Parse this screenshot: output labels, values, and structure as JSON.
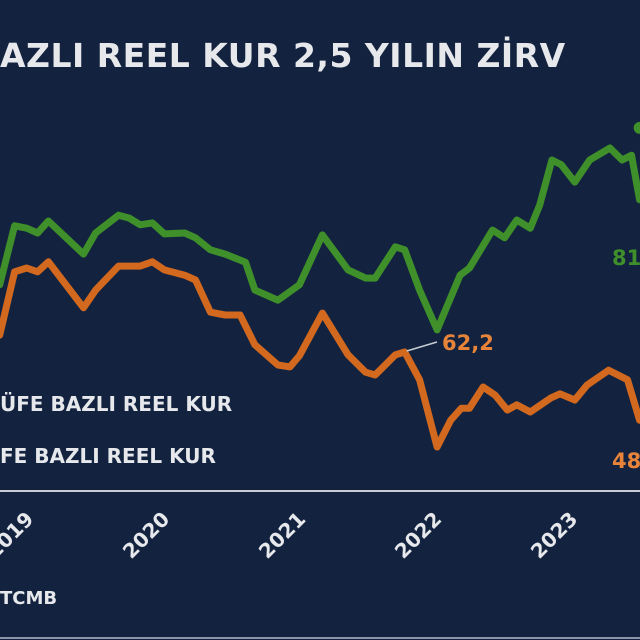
{
  "title": "AZLI REEL KUR 2,5 YILIN ZİRV",
  "legend": [
    {
      "label": "ÜFE BAZLI REEL KUR",
      "color": "#3f8f2a"
    },
    {
      "label": "FE BAZLI REEL KUR",
      "color": "#d2691e"
    }
  ],
  "source": "TCMB",
  "colors": {
    "background": "#13233f",
    "green": "#3f8f2a",
    "orange": "#d2691e",
    "orange_label": "#e8843a",
    "green_label": "#3f8f2a",
    "text": "#e6e8ec",
    "axis": "#c8ccd4"
  },
  "chart_data": {
    "type": "line",
    "title": "AZLI REEL KUR 2,5 YILIN ZİRV",
    "xlabel": "",
    "ylabel": "",
    "x_ticks": [
      "2019",
      "2020",
      "2021",
      "2022",
      "2023"
    ],
    "grid": false,
    "legend_placement": "bottom-left",
    "annotations": [
      {
        "text": "62,2",
        "series": 1,
        "x": 2021.85,
        "y": 62.2,
        "color": "#e8843a"
      },
      {
        "text": "81",
        "series": 0,
        "color": "#3f8f2a"
      },
      {
        "text": "48",
        "series": 1,
        "color": "#e8843a"
      }
    ],
    "series": [
      {
        "name": "ÜFE BAZLI REEL KUR",
        "color": "#3f8f2a",
        "points": [
          [
            2018.85,
            76.2
          ],
          [
            2018.96,
            88.5
          ],
          [
            2019.05,
            88.0
          ],
          [
            2019.13,
            87.0
          ],
          [
            2019.21,
            89.5
          ],
          [
            2019.47,
            82.6
          ],
          [
            2019.56,
            87.0
          ],
          [
            2019.73,
            90.7
          ],
          [
            2019.81,
            90.1
          ],
          [
            2019.89,
            88.7
          ],
          [
            2019.98,
            89.1
          ],
          [
            2020.07,
            86.8
          ],
          [
            2020.22,
            87.0
          ],
          [
            2020.3,
            86.0
          ],
          [
            2020.41,
            83.5
          ],
          [
            2020.52,
            82.6
          ],
          [
            2020.67,
            80.9
          ],
          [
            2020.74,
            75.1
          ],
          [
            2020.91,
            73.0
          ],
          [
            2021.07,
            76.2
          ],
          [
            2021.24,
            86.6
          ],
          [
            2021.43,
            79.3
          ],
          [
            2021.56,
            77.6
          ],
          [
            2021.63,
            77.6
          ],
          [
            2021.78,
            84.1
          ],
          [
            2021.85,
            83.5
          ],
          [
            2021.96,
            75.1
          ],
          [
            2022.09,
            66.8
          ],
          [
            2022.26,
            78.2
          ],
          [
            2022.33,
            79.7
          ],
          [
            2022.5,
            87.6
          ],
          [
            2022.59,
            86.0
          ],
          [
            2022.68,
            89.7
          ],
          [
            2022.78,
            88.0
          ],
          [
            2022.85,
            92.8
          ],
          [
            2022.94,
            102.2
          ],
          [
            2023.01,
            101.2
          ],
          [
            2023.11,
            97.6
          ],
          [
            2023.22,
            102.2
          ],
          [
            2023.37,
            104.7
          ],
          [
            2023.46,
            102.2
          ],
          [
            2023.53,
            103.2
          ],
          [
            2023.59,
            93.9
          ]
        ],
        "marker": [
          2023.59,
          108.9
        ]
      },
      {
        "name": "FE BAZLI REEL KUR",
        "color": "#d2691e",
        "points": [
          [
            2018.85,
            65.7
          ],
          [
            2018.96,
            78.9
          ],
          [
            2019.05,
            79.7
          ],
          [
            2019.13,
            78.9
          ],
          [
            2019.21,
            81.0
          ],
          [
            2019.47,
            71.4
          ],
          [
            2019.56,
            75.1
          ],
          [
            2019.73,
            80.1
          ],
          [
            2019.89,
            80.1
          ],
          [
            2019.98,
            81.0
          ],
          [
            2020.07,
            79.3
          ],
          [
            2020.22,
            78.2
          ],
          [
            2020.3,
            77.2
          ],
          [
            2020.41,
            70.5
          ],
          [
            2020.52,
            69.9
          ],
          [
            2020.63,
            69.9
          ],
          [
            2020.74,
            63.7
          ],
          [
            2020.91,
            59.5
          ],
          [
            2021.0,
            59.1
          ],
          [
            2021.07,
            61.4
          ],
          [
            2021.24,
            70.3
          ],
          [
            2021.43,
            61.6
          ],
          [
            2021.56,
            58.0
          ],
          [
            2021.63,
            57.4
          ],
          [
            2021.78,
            61.6
          ],
          [
            2021.85,
            62.2
          ],
          [
            2021.96,
            56.4
          ],
          [
            2022.09,
            42.4
          ],
          [
            2022.19,
            48.0
          ],
          [
            2022.27,
            50.5
          ],
          [
            2022.33,
            50.5
          ],
          [
            2022.43,
            54.9
          ],
          [
            2022.52,
            53.2
          ],
          [
            2022.61,
            50.1
          ],
          [
            2022.68,
            51.2
          ],
          [
            2022.78,
            49.7
          ],
          [
            2022.93,
            52.6
          ],
          [
            2023.0,
            53.5
          ],
          [
            2023.11,
            52.2
          ],
          [
            2023.2,
            55.3
          ],
          [
            2023.36,
            58.4
          ],
          [
            2023.5,
            56.4
          ],
          [
            2023.59,
            48.0
          ]
        ]
      }
    ]
  }
}
